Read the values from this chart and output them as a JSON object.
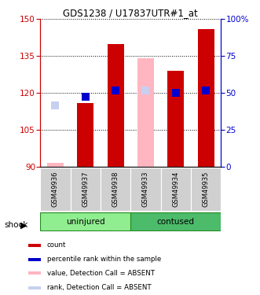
{
  "title": "GDS1238 / U17837UTR#1_at",
  "samples": [
    "GSM49936",
    "GSM49937",
    "GSM49938",
    "GSM49933",
    "GSM49934",
    "GSM49935"
  ],
  "absent_flags": [
    true,
    false,
    false,
    true,
    false,
    false
  ],
  "count_values": [
    91.5,
    116.0,
    140.0,
    134.0,
    129.0,
    146.0
  ],
  "rank_values": [
    115.0,
    118.5,
    121.0,
    121.0,
    120.0,
    121.0
  ],
  "ylim": [
    90,
    150
  ],
  "yticks_left": [
    90,
    105,
    120,
    135,
    150
  ],
  "red_color": "#CC0000",
  "absent_bar_color": "#FFB6C1",
  "absent_rank_color": "#C8D0F0",
  "blue_color": "#0000CC",
  "left_axis_color": "#CC0000",
  "right_axis_color": "#0000CC",
  "gray_bg": "#D0D0D0",
  "uninjured_color": "#90EE90",
  "contused_color": "#4CBB6A",
  "group_border_color": "#228B22",
  "legend_items": [
    {
      "color": "#CC0000",
      "label": "count"
    },
    {
      "color": "#0000CC",
      "label": "percentile rank within the sample"
    },
    {
      "color": "#FFB6C1",
      "label": "value, Detection Call = ABSENT"
    },
    {
      "color": "#C8D0F0",
      "label": "rank, Detection Call = ABSENT"
    }
  ]
}
